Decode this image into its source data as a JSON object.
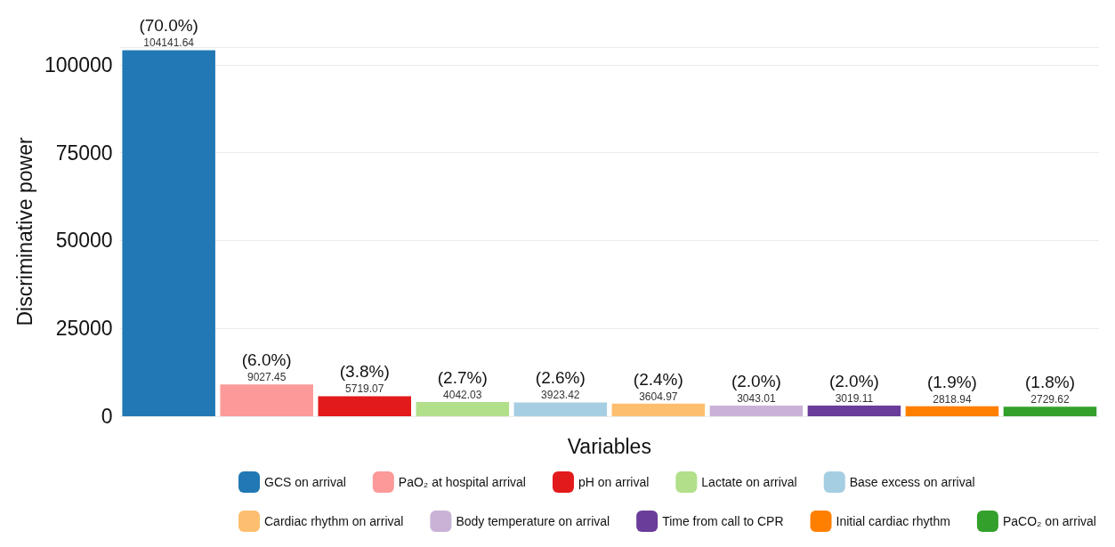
{
  "chart_data": {
    "type": "bar",
    "xlabel": "Variables",
    "ylabel": "Discriminative power",
    "categories": [
      null,
      null,
      null,
      null,
      null,
      null,
      null,
      null,
      null,
      null
    ],
    "series": [
      {
        "name": "GCS on arrival",
        "color": "#2178b4",
        "values": [
          104141.64,
          null,
          null,
          null,
          null,
          null,
          null,
          null,
          null,
          null
        ]
      },
      {
        "name": "PaO₂ at hospital arrival",
        "color": "#fb9a99",
        "values": [
          null,
          9027.45,
          null,
          null,
          null,
          null,
          null,
          null,
          null,
          null
        ]
      },
      {
        "name": "pH on arrival",
        "color": "#e31a1c",
        "values": [
          null,
          null,
          5719.07,
          null,
          null,
          null,
          null,
          null,
          null,
          null
        ]
      },
      {
        "name": "Lactate on arrival",
        "color": "#b2df8a",
        "values": [
          null,
          null,
          null,
          4042.03,
          null,
          null,
          null,
          null,
          null,
          null
        ]
      },
      {
        "name": "Base excess on arrival",
        "color": "#a6cee3",
        "values": [
          null,
          null,
          null,
          null,
          3923.42,
          null,
          null,
          null,
          null,
          null
        ]
      },
      {
        "name": "Cardiac rhythm on arrival",
        "color": "#fdbf6f",
        "values": [
          null,
          null,
          null,
          null,
          null,
          3604.97,
          null,
          null,
          null,
          null
        ]
      },
      {
        "name": "Body temperature on arrival",
        "color": "#cab2d6",
        "values": [
          null,
          null,
          null,
          null,
          null,
          null,
          3043.01,
          null,
          null,
          null
        ]
      },
      {
        "name": "Time from call to CPR",
        "color": "#6a3d9a",
        "values": [
          null,
          null,
          null,
          null,
          null,
          null,
          null,
          3019.11,
          null,
          null
        ]
      },
      {
        "name": "Initial cardiac rhythm",
        "color": "#ff7f00",
        "values": [
          null,
          null,
          null,
          null,
          null,
          null,
          null,
          null,
          2818.94,
          null
        ]
      },
      {
        "name": "PaCO₂ on arrival",
        "color": "#33a02c",
        "values": [
          null,
          null,
          null,
          null,
          null,
          null,
          null,
          null,
          null,
          2729.62
        ]
      }
    ],
    "annotations": [
      {
        "text": "(70.0%)",
        "y": 104141.64
      },
      {
        "text": "(6.0%)",
        "y": 9027.45
      },
      {
        "text": "(3.8%)",
        "y": 5719.07
      },
      {
        "text": "(2.7%)",
        "y": 4042.03
      },
      {
        "text": "(2.6%)",
        "y": 3923.42
      },
      {
        "text": "(2.4%)",
        "y": 3604.97
      },
      {
        "text": "(2.0%)",
        "y": 3043.01
      },
      {
        "text": "(2.0%)",
        "y": 3019.11
      },
      {
        "text": "(1.9%)",
        "y": 2818.94
      },
      {
        "text": "(1.8%)",
        "y": 2729.62
      }
    ],
    "data_labels": true,
    "ylim": [
      0,
      105000
    ],
    "yticks": [
      0,
      25000,
      50000,
      75000,
      100000,
      {
        "value": 105000,
        "label": null
      }
    ],
    "grid": "y",
    "legend": "bottom"
  }
}
